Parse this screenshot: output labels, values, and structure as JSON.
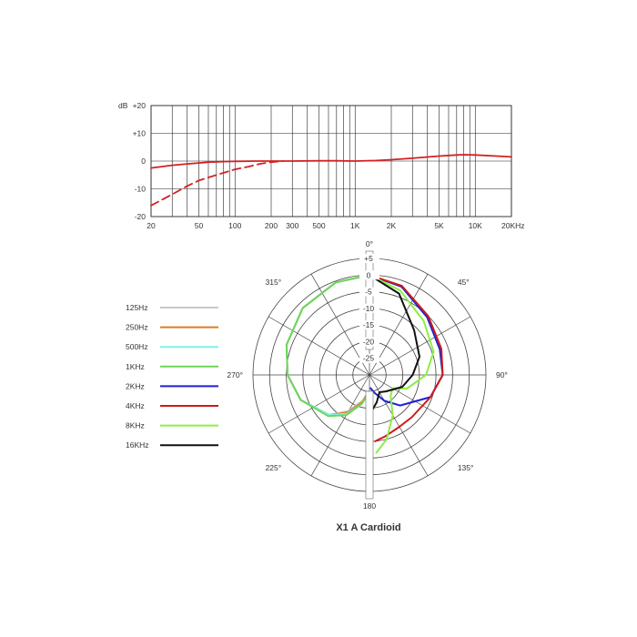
{
  "chart_data": [
    {
      "type": "line",
      "x_scale": "log",
      "xlim": [
        20,
        20000
      ],
      "ylim": [
        -20,
        20
      ],
      "y_unit_label": "dB",
      "x_ticks": [
        {
          "value": 20,
          "label": "20"
        },
        {
          "value": 50,
          "label": "50"
        },
        {
          "value": 100,
          "label": "100"
        },
        {
          "value": 200,
          "label": "200"
        },
        {
          "value": 300,
          "label": "300"
        },
        {
          "value": 500,
          "label": "500"
        },
        {
          "value": 1000,
          "label": "1K"
        },
        {
          "value": 2000,
          "label": "2K"
        },
        {
          "value": 5000,
          "label": "5K"
        },
        {
          "value": 10000,
          "label": "10K"
        },
        {
          "value": 20000,
          "label": "20KHz"
        }
      ],
      "y_ticks": [
        {
          "value": 20,
          "label": "+20"
        },
        {
          "value": 10,
          "label": "+10"
        },
        {
          "value": 0,
          "label": "0"
        },
        {
          "value": -10,
          "label": "-10"
        },
        {
          "value": -20,
          "label": "-20"
        }
      ],
      "grid": true,
      "series": [
        {
          "style": "solid",
          "color": "#d42020",
          "x": [
            20,
            30,
            40,
            50,
            60,
            80,
            100,
            150,
            200,
            300,
            500,
            700,
            1000,
            1500,
            2000,
            3000,
            5000,
            7000,
            8000,
            10000,
            15000,
            20000
          ],
          "y": [
            -2.5,
            -1.5,
            -1.0,
            -0.7,
            -0.4,
            -0.2,
            -0.1,
            0,
            0,
            0,
            0.1,
            0.1,
            0,
            0.2,
            0.5,
            1.0,
            1.8,
            2.2,
            2.3,
            2.2,
            1.8,
            1.5
          ]
        },
        {
          "style": "dashed",
          "color": "#d42020",
          "x": [
            20,
            30,
            40,
            50,
            70,
            100,
            130,
            160,
            200,
            250
          ],
          "y": [
            -16,
            -12,
            -9,
            -7,
            -5,
            -3,
            -2,
            -1,
            -0.4,
            0
          ]
        }
      ]
    },
    {
      "type": "polar",
      "title": "X1 A Cardioid",
      "r_ticks": [
        {
          "value": 5,
          "label": "+5"
        },
        {
          "value": 0,
          "label": "0"
        },
        {
          "value": -5,
          "label": "-5"
        },
        {
          "value": -10,
          "label": "-10"
        },
        {
          "value": -15,
          "label": "-15"
        },
        {
          "value": -20,
          "label": "-20"
        },
        {
          "value": -25,
          "label": "-25"
        }
      ],
      "rlim": [
        -30,
        5
      ],
      "angle_labels": [
        {
          "angle": 0,
          "label": "0°"
        },
        {
          "angle": 45,
          "label": "45°"
        },
        {
          "angle": 90,
          "label": "90°"
        },
        {
          "angle": 135,
          "label": "135°"
        },
        {
          "angle": 180,
          "label": "180"
        },
        {
          "angle": 225,
          "label": "225°"
        },
        {
          "angle": 270,
          "label": "270°"
        },
        {
          "angle": 315,
          "label": "315°"
        }
      ],
      "legend_placement": "left",
      "series": [
        {
          "name": "125Hz",
          "color": "#c8c8c8",
          "side": "left",
          "angles": [
            0,
            20,
            45,
            70,
            90,
            110,
            135,
            150,
            165,
            175
          ],
          "levels": [
            0,
            -0.4,
            -1.6,
            -3.5,
            -5.4,
            -8.0,
            -13.0,
            -17.5,
            -22.0,
            -24.5
          ]
        },
        {
          "name": "250Hz",
          "color": "#e07a22",
          "side": "left",
          "angles": [
            0,
            20,
            45,
            70,
            90,
            110,
            135,
            150,
            165,
            175
          ],
          "levels": [
            0,
            -0.4,
            -1.6,
            -3.5,
            -5.4,
            -8.0,
            -13.0,
            -17.0,
            -21.5,
            -24.5
          ]
        },
        {
          "name": "500Hz",
          "color": "#7ff2e6",
          "side": "left",
          "angles": [
            0,
            20,
            45,
            70,
            90,
            110,
            135,
            150,
            165,
            175
          ],
          "levels": [
            0,
            -0.4,
            -1.6,
            -3.5,
            -5.4,
            -8.0,
            -13.0,
            -16.5,
            -21.0,
            -24.0
          ]
        },
        {
          "name": "1KHz",
          "color": "#6ed659",
          "side": "left",
          "angles": [
            0,
            20,
            45,
            70,
            90,
            110,
            135,
            150,
            165,
            175
          ],
          "levels": [
            0,
            -0.4,
            -1.6,
            -3.5,
            -5.4,
            -8.0,
            -12.5,
            -16.0,
            -21.0,
            -24.0
          ]
        },
        {
          "name": "2KHz",
          "color": "#1b22d6",
          "side": "right",
          "angles": [
            0,
            20,
            45,
            70,
            90,
            110,
            135,
            150,
            165,
            175
          ],
          "levels": [
            0,
            -1.8,
            -5.5,
            -7.5,
            -8.0,
            -10.5,
            -17.0,
            -21.0,
            -24.5,
            -26.0
          ]
        },
        {
          "name": "4KHz",
          "color": "#cc1a1a",
          "side": "right",
          "angles": [
            0,
            20,
            45,
            70,
            90,
            110,
            135,
            150,
            165,
            175
          ],
          "levels": [
            0,
            -1.5,
            -5.0,
            -7.0,
            -8.0,
            -10.5,
            -12.0,
            -12.0,
            -11.0,
            -10.0
          ]
        },
        {
          "name": "8KHz",
          "color": "#8cee44",
          "side": "right",
          "angles": [
            0,
            20,
            45,
            70,
            90,
            110,
            120,
            135,
            150,
            165,
            175
          ],
          "levels": [
            0,
            -3.0,
            -7.0,
            -9.5,
            -13.0,
            -18.0,
            -22.0,
            -21.0,
            -16.0,
            -10.0,
            -6.5
          ]
        },
        {
          "name": "16KHz",
          "color": "#111111",
          "side": "right",
          "angles": [
            0,
            20,
            45,
            70,
            90,
            110,
            135,
            150,
            165,
            175
          ],
          "levels": [
            0,
            -4.0,
            -11.0,
            -14.0,
            -17.0,
            -19.5,
            -23.0,
            -24.0,
            -21.5,
            -19.5
          ]
        }
      ]
    }
  ]
}
